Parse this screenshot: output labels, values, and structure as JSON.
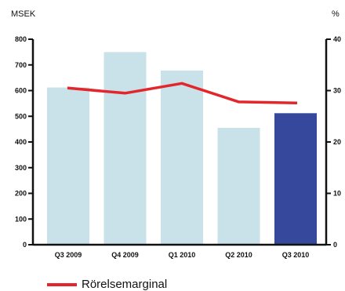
{
  "chart_data": {
    "type": "bar",
    "units": {
      "left": "MSEK",
      "right": "%"
    },
    "categories": [
      "Q3 2009",
      "Q4 2009",
      "Q1 2010",
      "Q2 2010",
      "Q3 2010"
    ],
    "y_left": {
      "min": 0,
      "max": 800,
      "ticks": [
        0,
        100,
        200,
        300,
        400,
        500,
        600,
        700,
        800
      ]
    },
    "y_right": {
      "min": 0,
      "max": 40,
      "ticks": [
        0,
        10,
        20,
        30,
        40
      ]
    },
    "series": [
      {
        "type": "bar",
        "axis": "left",
        "values": [
          612,
          750,
          678,
          455,
          512
        ],
        "colors": [
          "#c9e2ea",
          "#c9e2ea",
          "#c9e2ea",
          "#c9e2ea",
          "#36489b"
        ]
      },
      {
        "type": "line",
        "axis": "right",
        "name": "Rörelsemarginal",
        "values": [
          30.5,
          29.5,
          31.4,
          27.8,
          27.6
        ],
        "color": "#e3262b"
      }
    ],
    "legend_position": "bottom-left",
    "grid": false
  }
}
